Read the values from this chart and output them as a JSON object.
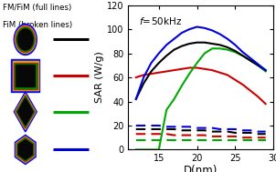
{
  "title": "f=50kHz",
  "xlabel": "D(nm)",
  "ylabel": "SAR (W/g)",
  "xlim": [
    11,
    30
  ],
  "ylim": [
    0,
    120
  ],
  "xticks": [
    15,
    20,
    25,
    30
  ],
  "yticks": [
    0,
    20,
    40,
    60,
    80,
    100,
    120
  ],
  "legend_text_1": "FM/FiM (full lines)",
  "legend_text_2": "FiM (broken lines)",
  "colors": {
    "black": "#000000",
    "red": "#cc0000",
    "green": "#00aa00",
    "blue": "#0000dd"
  },
  "shape_colors": {
    "outer_blue": "#1010ee",
    "gold": "#ddaa00",
    "red_ring": "#cc2200",
    "green_ring": "#008800",
    "black": "#080808"
  },
  "solid_lines": {
    "x": [
      12,
      13,
      14,
      15,
      16,
      17,
      18,
      19,
      20,
      21,
      22,
      23,
      24,
      25,
      26,
      27,
      28,
      29
    ],
    "black": [
      42,
      55,
      65,
      72,
      78,
      83,
      86,
      88,
      89,
      89,
      88,
      87,
      85,
      82,
      78,
      74,
      70,
      66
    ],
    "blue": [
      42,
      60,
      72,
      80,
      87,
      92,
      97,
      100,
      102,
      101,
      99,
      96,
      92,
      87,
      81,
      76,
      71,
      66
    ],
    "green": [
      0,
      0,
      0,
      0,
      33,
      42,
      53,
      63,
      72,
      80,
      84,
      84,
      83,
      81,
      78,
      74,
      70,
      65
    ],
    "red": [
      60,
      62,
      63,
      64,
      65,
      66,
      67,
      68,
      68,
      67,
      66,
      64,
      62,
      58,
      54,
      49,
      44,
      38
    ]
  },
  "dashed_lines": {
    "x": [
      12,
      13,
      14,
      15,
      16,
      17,
      18,
      19,
      20,
      21,
      22,
      23,
      24,
      25,
      26,
      27,
      28,
      29
    ],
    "black": [
      17,
      17,
      17,
      17,
      17,
      17,
      16,
      16,
      16,
      16,
      15,
      15,
      15,
      14,
      14,
      14,
      13,
      13
    ],
    "blue": [
      20,
      20,
      20,
      20,
      19,
      19,
      19,
      19,
      18,
      18,
      18,
      17,
      17,
      17,
      16,
      16,
      15,
      15
    ],
    "green": [
      8,
      8,
      8,
      8,
      8,
      8,
      8,
      8,
      8,
      8,
      8,
      8,
      8,
      8,
      8,
      8,
      8,
      8
    ],
    "red": [
      13,
      13,
      13,
      13,
      13,
      12,
      12,
      12,
      12,
      12,
      11,
      11,
      11,
      11,
      10,
      10,
      10,
      10
    ]
  },
  "figsize": [
    3.02,
    1.89
  ],
  "dpi": 100
}
